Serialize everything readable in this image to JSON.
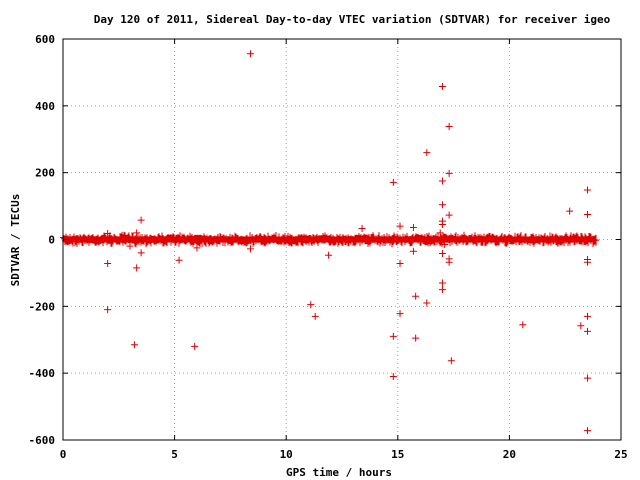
{
  "chart_data": {
    "type": "scatter",
    "title": "Day 120 of 2011, Sidereal Day-to-day VTEC variation (SDTVAR) for receiver igeo",
    "xlabel": "GPS time / hours",
    "ylabel": "SDTVAR / TECUs",
    "xlim": [
      0,
      25
    ],
    "ylim": [
      -600,
      600
    ],
    "x_ticks": [
      "0",
      "5",
      "10",
      "15",
      "20",
      "25"
    ],
    "y_ticks": [
      "600",
      "400",
      "200",
      "0",
      "-200",
      "-400",
      "-600"
    ],
    "x_tick_values": [
      0,
      5,
      10,
      15,
      20,
      25
    ],
    "y_tick_values": [
      600,
      400,
      200,
      0,
      -200,
      -400,
      -600
    ],
    "grid": true,
    "marker": "plus",
    "series_color": "#e00000",
    "dense_band": {
      "x_range": [
        0,
        23.9
      ],
      "y_range": [
        -8,
        8
      ]
    },
    "points": [
      {
        "x": 8.4,
        "y": 556
      },
      {
        "x": 17.0,
        "y": 458
      },
      {
        "x": 17.3,
        "y": 338
      },
      {
        "x": 16.3,
        "y": 260
      },
      {
        "x": 17.3,
        "y": 198
      },
      {
        "x": 14.8,
        "y": 171
      },
      {
        "x": 17.0,
        "y": 175
      },
      {
        "x": 23.5,
        "y": 148
      },
      {
        "x": 17.0,
        "y": 104
      },
      {
        "x": 22.7,
        "y": 85
      },
      {
        "x": 17.3,
        "y": 73
      },
      {
        "x": 23.5,
        "y": 75
      },
      {
        "x": 3.5,
        "y": 58
      },
      {
        "x": 17.0,
        "y": 55
      },
      {
        "x": 17.0,
        "y": 45
      },
      {
        "x": 15.1,
        "y": 40
      },
      {
        "x": 15.7,
        "y": 36
      },
      {
        "x": 13.4,
        "y": 33
      },
      {
        "x": 3.3,
        "y": 20
      },
      {
        "x": 2.0,
        "y": 18
      },
      {
        "x": 16.9,
        "y": 20
      },
      {
        "x": 17.1,
        "y": -15
      },
      {
        "x": 3.0,
        "y": -20
      },
      {
        "x": 8.4,
        "y": -28
      },
      {
        "x": 6.0,
        "y": -25
      },
      {
        "x": 15.7,
        "y": -35
      },
      {
        "x": 3.5,
        "y": -40
      },
      {
        "x": 17.0,
        "y": -42
      },
      {
        "x": 11.9,
        "y": -47
      },
      {
        "x": 17.3,
        "y": -58
      },
      {
        "x": 5.2,
        "y": -62
      },
      {
        "x": 23.5,
        "y": -60
      },
      {
        "x": 17.3,
        "y": -68
      },
      {
        "x": 23.5,
        "y": -68
      },
      {
        "x": 2.0,
        "y": -72
      },
      {
        "x": 15.1,
        "y": -72
      },
      {
        "x": 3.3,
        "y": -85
      },
      {
        "x": 17.0,
        "y": -130
      },
      {
        "x": 17.0,
        "y": -150
      },
      {
        "x": 15.8,
        "y": -170
      },
      {
        "x": 16.3,
        "y": -190
      },
      {
        "x": 11.1,
        "y": -195
      },
      {
        "x": 2.0,
        "y": -210
      },
      {
        "x": 15.1,
        "y": -222
      },
      {
        "x": 11.3,
        "y": -230
      },
      {
        "x": 23.5,
        "y": -230
      },
      {
        "x": 20.6,
        "y": -255
      },
      {
        "x": 23.2,
        "y": -258
      },
      {
        "x": 23.5,
        "y": -275
      },
      {
        "x": 14.8,
        "y": -290
      },
      {
        "x": 15.8,
        "y": -295
      },
      {
        "x": 3.2,
        "y": -315
      },
      {
        "x": 5.9,
        "y": -320
      },
      {
        "x": 17.4,
        "y": -363
      },
      {
        "x": 14.8,
        "y": -410
      },
      {
        "x": 23.5,
        "y": -415
      },
      {
        "x": 23.5,
        "y": -572
      }
    ]
  }
}
